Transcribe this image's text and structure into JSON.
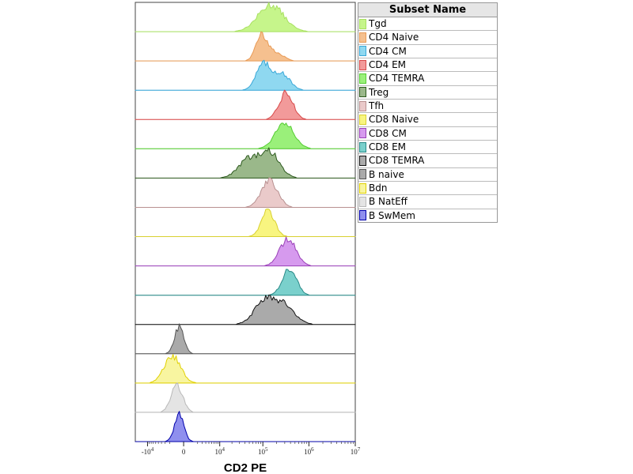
{
  "chart_data": {
    "type": "area",
    "title": "",
    "xlabel": "CD2 PE",
    "ylabel": "",
    "x_scale": "biexponential",
    "x_ticks": [
      "-10^4",
      "0",
      "10^4",
      "10^5",
      "10^6",
      "10^7"
    ],
    "xlim": [
      -20000,
      10000000
    ],
    "legend": {
      "header": "Subset Name",
      "placement": "right"
    },
    "series": [
      {
        "name": "Tgd",
        "color": "#c6f58b",
        "line": "#a8e060",
        "peaks": [
          {
            "x": 150000,
            "w": 0.55
          }
        ]
      },
      {
        "name": "CD4 Naive",
        "color": "#f5c08f",
        "line": "#e89a55",
        "peaks": [
          {
            "x": 95000,
            "w": 0.25
          },
          {
            "x": 200000,
            "w": 0.3,
            "h": 0.3
          }
        ]
      },
      {
        "name": "CD4 CM",
        "color": "#8fd8f0",
        "line": "#3aa8d8",
        "peaks": [
          {
            "x": 100000,
            "w": 0.3
          },
          {
            "x": 250000,
            "w": 0.35,
            "h": 0.7
          }
        ]
      },
      {
        "name": "CD4 EM",
        "color": "#f29a9a",
        "line": "#d84a4a",
        "peaks": [
          {
            "x": 320000,
            "w": 0.3
          }
        ]
      },
      {
        "name": "CD4 TEMRA",
        "color": "#9af07a",
        "line": "#55cc33",
        "peaks": [
          {
            "x": 300000,
            "w": 0.4
          }
        ]
      },
      {
        "name": "Treg",
        "color": "#9ab88a",
        "line": "#2d5a1e",
        "peaks": [
          {
            "x": 50000,
            "w": 0.45,
            "h": 0.8
          },
          {
            "x": 150000,
            "w": 0.4
          }
        ]
      },
      {
        "name": "Tfh",
        "color": "#eacaca",
        "line": "#b89090",
        "peaks": [
          {
            "x": 140000,
            "w": 0.35
          }
        ]
      },
      {
        "name": "CD8 Naive",
        "color": "#f8f580",
        "line": "#d8d030",
        "peaks": [
          {
            "x": 130000,
            "w": 0.28
          }
        ]
      },
      {
        "name": "CD8 CM",
        "color": "#d69aee",
        "line": "#9a40b8",
        "peaks": [
          {
            "x": 350000,
            "w": 0.35
          }
        ]
      },
      {
        "name": "CD8 EM",
        "color": "#7ad0cc",
        "line": "#2a8a88",
        "peaks": [
          {
            "x": 380000,
            "w": 0.3
          }
        ]
      },
      {
        "name": "CD8 TEMRA",
        "color": "#aaaaaa",
        "line": "#111111",
        "peaks": [
          {
            "x": 110000,
            "w": 0.45
          },
          {
            "x": 300000,
            "w": 0.45,
            "h": 0.75
          }
        ]
      },
      {
        "name": "B naive",
        "color": "#aaaaaa",
        "line": "#555555",
        "peaks": [
          {
            "x": -500,
            "w": 0.2
          }
        ]
      },
      {
        "name": "Bdn",
        "color": "#f8f5a0",
        "line": "#e0d000",
        "peaks": [
          {
            "x": -1500,
            "w": 0.35
          }
        ]
      },
      {
        "name": "B NatEff",
        "color": "#e4e4e4",
        "line": "#b8b8b8",
        "peaks": [
          {
            "x": -800,
            "w": 0.25
          }
        ]
      },
      {
        "name": "B SwMem",
        "color": "#8f8fee",
        "line": "#0000aa",
        "peaks": [
          {
            "x": -500,
            "w": 0.2
          }
        ]
      }
    ]
  }
}
